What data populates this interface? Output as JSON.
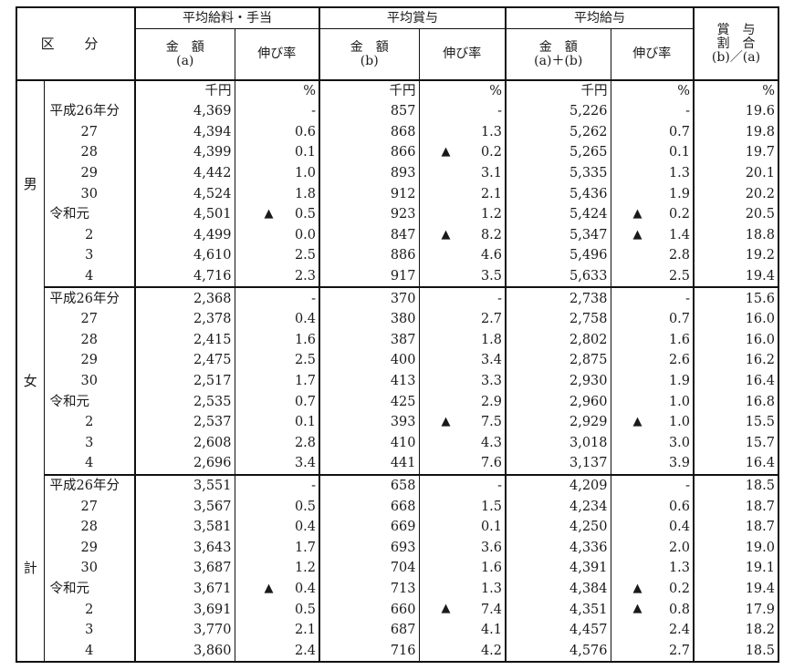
{
  "header": {
    "kubun": "区 分",
    "groups": [
      {
        "label": "平均給料・手当"
      },
      {
        "label": "平均賞与"
      },
      {
        "label": "平均給与"
      }
    ],
    "ratio_header": [
      "賞　与",
      "割　合",
      "(b)／(a)"
    ],
    "sub": {
      "amount_a": [
        "金　額",
        "(a)"
      ],
      "amount_b": [
        "金　額",
        "(b)"
      ],
      "amount_ab": [
        "金　額",
        "(a)＋(b)"
      ],
      "growth": "伸び率"
    }
  },
  "units": {
    "amount": "千円",
    "percent": "%"
  },
  "decline_marker": "▲",
  "groups": [
    {
      "label": "男",
      "rows": [
        {
          "year": "平成26年分",
          "era": true,
          "salary": "4,369",
          "salary_g": "-",
          "salary_neg": false,
          "bonus": "857",
          "bonus_g": "-",
          "bonus_neg": false,
          "total": "5,226",
          "total_g": "-",
          "total_neg": false,
          "ratio": "19.6"
        },
        {
          "year": "27",
          "salary": "4,394",
          "salary_g": "0.6",
          "salary_neg": false,
          "bonus": "868",
          "bonus_g": "1.3",
          "bonus_neg": false,
          "total": "5,262",
          "total_g": "0.7",
          "total_neg": false,
          "ratio": "19.8"
        },
        {
          "year": "28",
          "salary": "4,399",
          "salary_g": "0.1",
          "salary_neg": false,
          "bonus": "866",
          "bonus_g": "0.2",
          "bonus_neg": true,
          "total": "5,265",
          "total_g": "0.1",
          "total_neg": false,
          "ratio": "19.7"
        },
        {
          "year": "29",
          "salary": "4,442",
          "salary_g": "1.0",
          "salary_neg": false,
          "bonus": "893",
          "bonus_g": "3.1",
          "bonus_neg": false,
          "total": "5,335",
          "total_g": "1.3",
          "total_neg": false,
          "ratio": "20.1"
        },
        {
          "year": "30",
          "salary": "4,524",
          "salary_g": "1.8",
          "salary_neg": false,
          "bonus": "912",
          "bonus_g": "2.1",
          "bonus_neg": false,
          "total": "5,436",
          "total_g": "1.9",
          "total_neg": false,
          "ratio": "20.2"
        },
        {
          "year": "令和元",
          "era": true,
          "salary": "4,501",
          "salary_g": "0.5",
          "salary_neg": true,
          "bonus": "923",
          "bonus_g": "1.2",
          "bonus_neg": false,
          "total": "5,424",
          "total_g": "0.2",
          "total_neg": true,
          "ratio": "20.5"
        },
        {
          "year": "2",
          "salary": "4,499",
          "salary_g": "0.0",
          "salary_neg": false,
          "bonus": "847",
          "bonus_g": "8.2",
          "bonus_neg": true,
          "total": "5,347",
          "total_g": "1.4",
          "total_neg": true,
          "ratio": "18.8"
        },
        {
          "year": "3",
          "salary": "4,610",
          "salary_g": "2.5",
          "salary_neg": false,
          "bonus": "886",
          "bonus_g": "4.6",
          "bonus_neg": false,
          "total": "5,496",
          "total_g": "2.8",
          "total_neg": false,
          "ratio": "19.2"
        },
        {
          "year": "4",
          "salary": "4,716",
          "salary_g": "2.3",
          "salary_neg": false,
          "bonus": "917",
          "bonus_g": "3.5",
          "bonus_neg": false,
          "total": "5,633",
          "total_g": "2.5",
          "total_neg": false,
          "ratio": "19.4"
        }
      ]
    },
    {
      "label": "女",
      "rows": [
        {
          "year": "平成26年分",
          "era": true,
          "salary": "2,368",
          "salary_g": "-",
          "salary_neg": false,
          "bonus": "370",
          "bonus_g": "-",
          "bonus_neg": false,
          "total": "2,738",
          "total_g": "-",
          "total_neg": false,
          "ratio": "15.6"
        },
        {
          "year": "27",
          "salary": "2,378",
          "salary_g": "0.4",
          "salary_neg": false,
          "bonus": "380",
          "bonus_g": "2.7",
          "bonus_neg": false,
          "total": "2,758",
          "total_g": "0.7",
          "total_neg": false,
          "ratio": "16.0"
        },
        {
          "year": "28",
          "salary": "2,415",
          "salary_g": "1.6",
          "salary_neg": false,
          "bonus": "387",
          "bonus_g": "1.8",
          "bonus_neg": false,
          "total": "2,802",
          "total_g": "1.6",
          "total_neg": false,
          "ratio": "16.0"
        },
        {
          "year": "29",
          "salary": "2,475",
          "salary_g": "2.5",
          "salary_neg": false,
          "bonus": "400",
          "bonus_g": "3.4",
          "bonus_neg": false,
          "total": "2,875",
          "total_g": "2.6",
          "total_neg": false,
          "ratio": "16.2"
        },
        {
          "year": "30",
          "salary": "2,517",
          "salary_g": "1.7",
          "salary_neg": false,
          "bonus": "413",
          "bonus_g": "3.3",
          "bonus_neg": false,
          "total": "2,930",
          "total_g": "1.9",
          "total_neg": false,
          "ratio": "16.4"
        },
        {
          "year": "令和元",
          "era": true,
          "salary": "2,535",
          "salary_g": "0.7",
          "salary_neg": false,
          "bonus": "425",
          "bonus_g": "2.9",
          "bonus_neg": false,
          "total": "2,960",
          "total_g": "1.0",
          "total_neg": false,
          "ratio": "16.8"
        },
        {
          "year": "2",
          "salary": "2,537",
          "salary_g": "0.1",
          "salary_neg": false,
          "bonus": "393",
          "bonus_g": "7.5",
          "bonus_neg": true,
          "total": "2,929",
          "total_g": "1.0",
          "total_neg": true,
          "ratio": "15.5"
        },
        {
          "year": "3",
          "salary": "2,608",
          "salary_g": "2.8",
          "salary_neg": false,
          "bonus": "410",
          "bonus_g": "4.3",
          "bonus_neg": false,
          "total": "3,018",
          "total_g": "3.0",
          "total_neg": false,
          "ratio": "15.7"
        },
        {
          "year": "4",
          "salary": "2,696",
          "salary_g": "3.4",
          "salary_neg": false,
          "bonus": "441",
          "bonus_g": "7.6",
          "bonus_neg": false,
          "total": "3,137",
          "total_g": "3.9",
          "total_neg": false,
          "ratio": "16.4"
        }
      ]
    },
    {
      "label": "計",
      "rows": [
        {
          "year": "平成26年分",
          "era": true,
          "salary": "3,551",
          "salary_g": "-",
          "salary_neg": false,
          "bonus": "658",
          "bonus_g": "-",
          "bonus_neg": false,
          "total": "4,209",
          "total_g": "-",
          "total_neg": false,
          "ratio": "18.5"
        },
        {
          "year": "27",
          "salary": "3,567",
          "salary_g": "0.5",
          "salary_neg": false,
          "bonus": "668",
          "bonus_g": "1.5",
          "bonus_neg": false,
          "total": "4,234",
          "total_g": "0.6",
          "total_neg": false,
          "ratio": "18.7"
        },
        {
          "year": "28",
          "salary": "3,581",
          "salary_g": "0.4",
          "salary_neg": false,
          "bonus": "669",
          "bonus_g": "0.1",
          "bonus_neg": false,
          "total": "4,250",
          "total_g": "0.4",
          "total_neg": false,
          "ratio": "18.7"
        },
        {
          "year": "29",
          "salary": "3,643",
          "salary_g": "1.7",
          "salary_neg": false,
          "bonus": "693",
          "bonus_g": "3.6",
          "bonus_neg": false,
          "total": "4,336",
          "total_g": "2.0",
          "total_neg": false,
          "ratio": "19.0"
        },
        {
          "year": "30",
          "salary": "3,687",
          "salary_g": "1.2",
          "salary_neg": false,
          "bonus": "704",
          "bonus_g": "1.6",
          "bonus_neg": false,
          "total": "4,391",
          "total_g": "1.3",
          "total_neg": false,
          "ratio": "19.1"
        },
        {
          "year": "令和元",
          "era": true,
          "salary": "3,671",
          "salary_g": "0.4",
          "salary_neg": true,
          "bonus": "713",
          "bonus_g": "1.3",
          "bonus_neg": false,
          "total": "4,384",
          "total_g": "0.2",
          "total_neg": true,
          "ratio": "19.4"
        },
        {
          "year": "2",
          "salary": "3,691",
          "salary_g": "0.5",
          "salary_neg": false,
          "bonus": "660",
          "bonus_g": "7.4",
          "bonus_neg": true,
          "total": "4,351",
          "total_g": "0.8",
          "total_neg": true,
          "ratio": "17.9"
        },
        {
          "year": "3",
          "salary": "3,770",
          "salary_g": "2.1",
          "salary_neg": false,
          "bonus": "687",
          "bonus_g": "4.1",
          "bonus_neg": false,
          "total": "4,457",
          "total_g": "2.4",
          "total_neg": false,
          "ratio": "18.2"
        },
        {
          "year": "4",
          "salary": "3,860",
          "salary_g": "2.4",
          "salary_neg": false,
          "bonus": "716",
          "bonus_g": "4.2",
          "bonus_neg": false,
          "total": "4,576",
          "total_g": "2.7",
          "total_neg": false,
          "ratio": "18.5"
        }
      ]
    }
  ]
}
